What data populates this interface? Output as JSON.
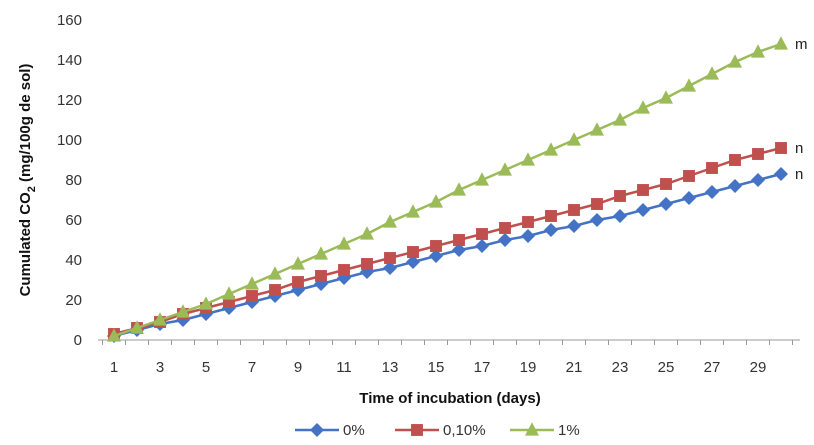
{
  "chart_data": {
    "type": "line",
    "xlabel": "Time of incubation (days)",
    "ylabel": "Cumulated CO2 (mg/100g de sol)",
    "ylim": [
      0,
      160
    ],
    "xlim": [
      1,
      30
    ],
    "yticks": [
      0,
      20,
      40,
      60,
      80,
      100,
      120,
      140,
      160
    ],
    "xticks": [
      "1",
      "3",
      "5",
      "7",
      "9",
      "11",
      "13",
      "15",
      "17",
      "19",
      "21",
      "23",
      "25",
      "27",
      "29"
    ],
    "grid": false,
    "legend_position": "bottom",
    "x": [
      1,
      2,
      3,
      4,
      5,
      6,
      7,
      8,
      9,
      10,
      11,
      12,
      13,
      14,
      15,
      16,
      17,
      18,
      19,
      20,
      21,
      22,
      23,
      24,
      25,
      26,
      27,
      28,
      29,
      30
    ],
    "series": [
      {
        "name": "0%",
        "color": "#4472C4",
        "marker": "diamond",
        "end_label": "n",
        "values": [
          2,
          5,
          8,
          10,
          13,
          16,
          19,
          22,
          25,
          28,
          31,
          34,
          36,
          39,
          42,
          45,
          47,
          50,
          52,
          55,
          57,
          60,
          62,
          65,
          68,
          71,
          74,
          77,
          80,
          83
        ]
      },
      {
        "name": "0,10%",
        "color": "#C0504D",
        "marker": "square",
        "end_label": "n",
        "values": [
          3,
          6,
          9,
          13,
          16,
          19,
          22,
          25,
          29,
          32,
          35,
          38,
          41,
          44,
          47,
          50,
          53,
          56,
          59,
          62,
          65,
          68,
          72,
          75,
          78,
          82,
          86,
          90,
          93,
          96
        ]
      },
      {
        "name": "1%",
        "color": "#9BBB59",
        "marker": "triangle",
        "end_label": "m",
        "values": [
          2,
          6,
          10,
          14,
          18,
          23,
          28,
          33,
          38,
          43,
          48,
          53,
          59,
          64,
          69,
          75,
          80,
          85,
          90,
          95,
          100,
          105,
          110,
          116,
          121,
          127,
          133,
          139,
          144,
          148
        ]
      }
    ]
  }
}
